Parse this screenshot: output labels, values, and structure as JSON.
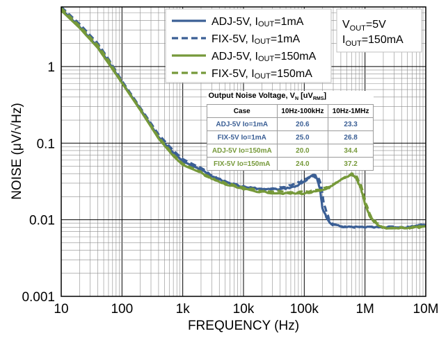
{
  "chart_data": {
    "type": "line",
    "xlabel": "FREQUENCY (Hz)",
    "ylabel": "NOISE (μV/√Hz)",
    "xscale": "log",
    "yscale": "log",
    "xlim": [
      10,
      10000000
    ],
    "ylim": [
      0.001,
      6
    ],
    "x_ticks": [
      {
        "v": 10,
        "label": "10"
      },
      {
        "v": 100,
        "label": "100"
      },
      {
        "v": 1000,
        "label": "1k"
      },
      {
        "v": 10000,
        "label": "10k"
      },
      {
        "v": 100000,
        "label": "100k"
      },
      {
        "v": 1000000,
        "label": "1M"
      },
      {
        "v": 10000000,
        "label": "10M"
      }
    ],
    "y_ticks": [
      {
        "v": 0.001,
        "label": "0.001"
      },
      {
        "v": 0.01,
        "label": "0.01"
      },
      {
        "v": 0.1,
        "label": "0.1"
      },
      {
        "v": 1,
        "label": "1"
      }
    ],
    "grid": true,
    "legend_position": "top-right",
    "conditions": {
      "vout": "V_OUT=5V",
      "iout": "I_OUT=150mA"
    },
    "series": [
      {
        "name": "ADJ-5V, I_OUT=1mA",
        "color": "#3b5f95",
        "dash": "solid",
        "points": [
          [
            10,
            5.6
          ],
          [
            20,
            3.3
          ],
          [
            40,
            1.8
          ],
          [
            60,
            1.15
          ],
          [
            100,
            0.62
          ],
          [
            200,
            0.28
          ],
          [
            400,
            0.12
          ],
          [
            700,
            0.075
          ],
          [
            1000,
            0.058
          ],
          [
            2000,
            0.045
          ],
          [
            3000,
            0.037
          ],
          [
            5000,
            0.031
          ],
          [
            10000,
            0.027
          ],
          [
            20000,
            0.025
          ],
          [
            40000,
            0.025
          ],
          [
            70000,
            0.027
          ],
          [
            100000,
            0.031
          ],
          [
            120000,
            0.036
          ],
          [
            140000,
            0.038
          ],
          [
            160000,
            0.035
          ],
          [
            180000,
            0.026
          ],
          [
            200000,
            0.014
          ],
          [
            250000,
            0.0095
          ],
          [
            300000,
            0.0085
          ],
          [
            500000,
            0.008
          ],
          [
            1000000,
            0.008
          ],
          [
            2000000,
            0.0079
          ],
          [
            5000000,
            0.008
          ],
          [
            10000000,
            0.0085
          ]
        ]
      },
      {
        "name": "FIX-5V, I_OUT=1mA",
        "color": "#3b5f95",
        "dash": "dashed",
        "points": [
          [
            10,
            6.0
          ],
          [
            20,
            3.6
          ],
          [
            40,
            2.0
          ],
          [
            60,
            1.25
          ],
          [
            100,
            0.65
          ],
          [
            200,
            0.29
          ],
          [
            400,
            0.13
          ],
          [
            700,
            0.08
          ],
          [
            1000,
            0.062
          ],
          [
            2000,
            0.047
          ],
          [
            3000,
            0.038
          ],
          [
            5000,
            0.032
          ],
          [
            10000,
            0.027
          ],
          [
            20000,
            0.025
          ],
          [
            40000,
            0.026
          ],
          [
            70000,
            0.029
          ],
          [
            100000,
            0.033
          ],
          [
            130000,
            0.037
          ],
          [
            150000,
            0.038
          ],
          [
            170000,
            0.036
          ],
          [
            190000,
            0.028
          ],
          [
            210000,
            0.016
          ],
          [
            260000,
            0.01
          ],
          [
            300000,
            0.0087
          ],
          [
            500000,
            0.008
          ],
          [
            1000000,
            0.008
          ],
          [
            2000000,
            0.008
          ],
          [
            5000000,
            0.0081
          ],
          [
            10000000,
            0.0087
          ]
        ]
      },
      {
        "name": "ADJ-5V, I_OUT=150mA",
        "color": "#76993a",
        "dash": "solid",
        "points": [
          [
            10,
            5.4
          ],
          [
            20,
            3.2
          ],
          [
            40,
            1.75
          ],
          [
            60,
            1.1
          ],
          [
            100,
            0.61
          ],
          [
            200,
            0.27
          ],
          [
            400,
            0.115
          ],
          [
            700,
            0.068
          ],
          [
            1000,
            0.052
          ],
          [
            2000,
            0.041
          ],
          [
            3000,
            0.034
          ],
          [
            5000,
            0.029
          ],
          [
            10000,
            0.025
          ],
          [
            20000,
            0.023
          ],
          [
            50000,
            0.022
          ],
          [
            100000,
            0.022
          ],
          [
            200000,
            0.024
          ],
          [
            300000,
            0.028
          ],
          [
            450000,
            0.035
          ],
          [
            600000,
            0.039
          ],
          [
            700000,
            0.036
          ],
          [
            850000,
            0.026
          ],
          [
            1000000,
            0.016
          ],
          [
            1200000,
            0.011
          ],
          [
            1500000,
            0.009
          ],
          [
            2000000,
            0.0078
          ],
          [
            5000000,
            0.0077
          ],
          [
            10000000,
            0.0082
          ]
        ]
      },
      {
        "name": "FIX-5V, I_OUT=150mA",
        "color": "#76993a",
        "dash": "dashed",
        "points": [
          [
            10,
            5.8
          ],
          [
            20,
            3.4
          ],
          [
            40,
            1.9
          ],
          [
            60,
            1.2
          ],
          [
            100,
            0.62
          ],
          [
            200,
            0.28
          ],
          [
            400,
            0.12
          ],
          [
            700,
            0.071
          ],
          [
            1000,
            0.054
          ],
          [
            2000,
            0.042
          ],
          [
            3000,
            0.035
          ],
          [
            5000,
            0.03
          ],
          [
            10000,
            0.026
          ],
          [
            20000,
            0.024
          ],
          [
            50000,
            0.023
          ],
          [
            100000,
            0.023
          ],
          [
            200000,
            0.025
          ],
          [
            300000,
            0.029
          ],
          [
            450000,
            0.036
          ],
          [
            620000,
            0.04
          ],
          [
            720000,
            0.037
          ],
          [
            870000,
            0.027
          ],
          [
            1020000,
            0.017
          ],
          [
            1250000,
            0.011
          ],
          [
            1550000,
            0.0092
          ],
          [
            2000000,
            0.008
          ],
          [
            5000000,
            0.0078
          ],
          [
            10000000,
            0.0084
          ]
        ]
      }
    ],
    "table": {
      "caption": "Output Noise Voltage, V_N [uV_RMS]",
      "headers": [
        "Case",
        "10Hz-100kHz",
        "10Hz-1MHz"
      ],
      "rows": [
        {
          "case": "ADJ-5V Io=1mA",
          "v1": "20.6",
          "v2": "23.3",
          "color": "#3b5f95"
        },
        {
          "case": "FIX-5V Io=1mA",
          "v1": "25.0",
          "v2": "26.8",
          "color": "#3b5f95"
        },
        {
          "case": "ADJ-5V Io=150mA",
          "v1": "20.0",
          "v2": "34.4",
          "color": "#76993a"
        },
        {
          "case": "FIX-5V Io=150mA",
          "v1": "24.0",
          "v2": "37.2",
          "color": "#76993a"
        }
      ]
    }
  }
}
